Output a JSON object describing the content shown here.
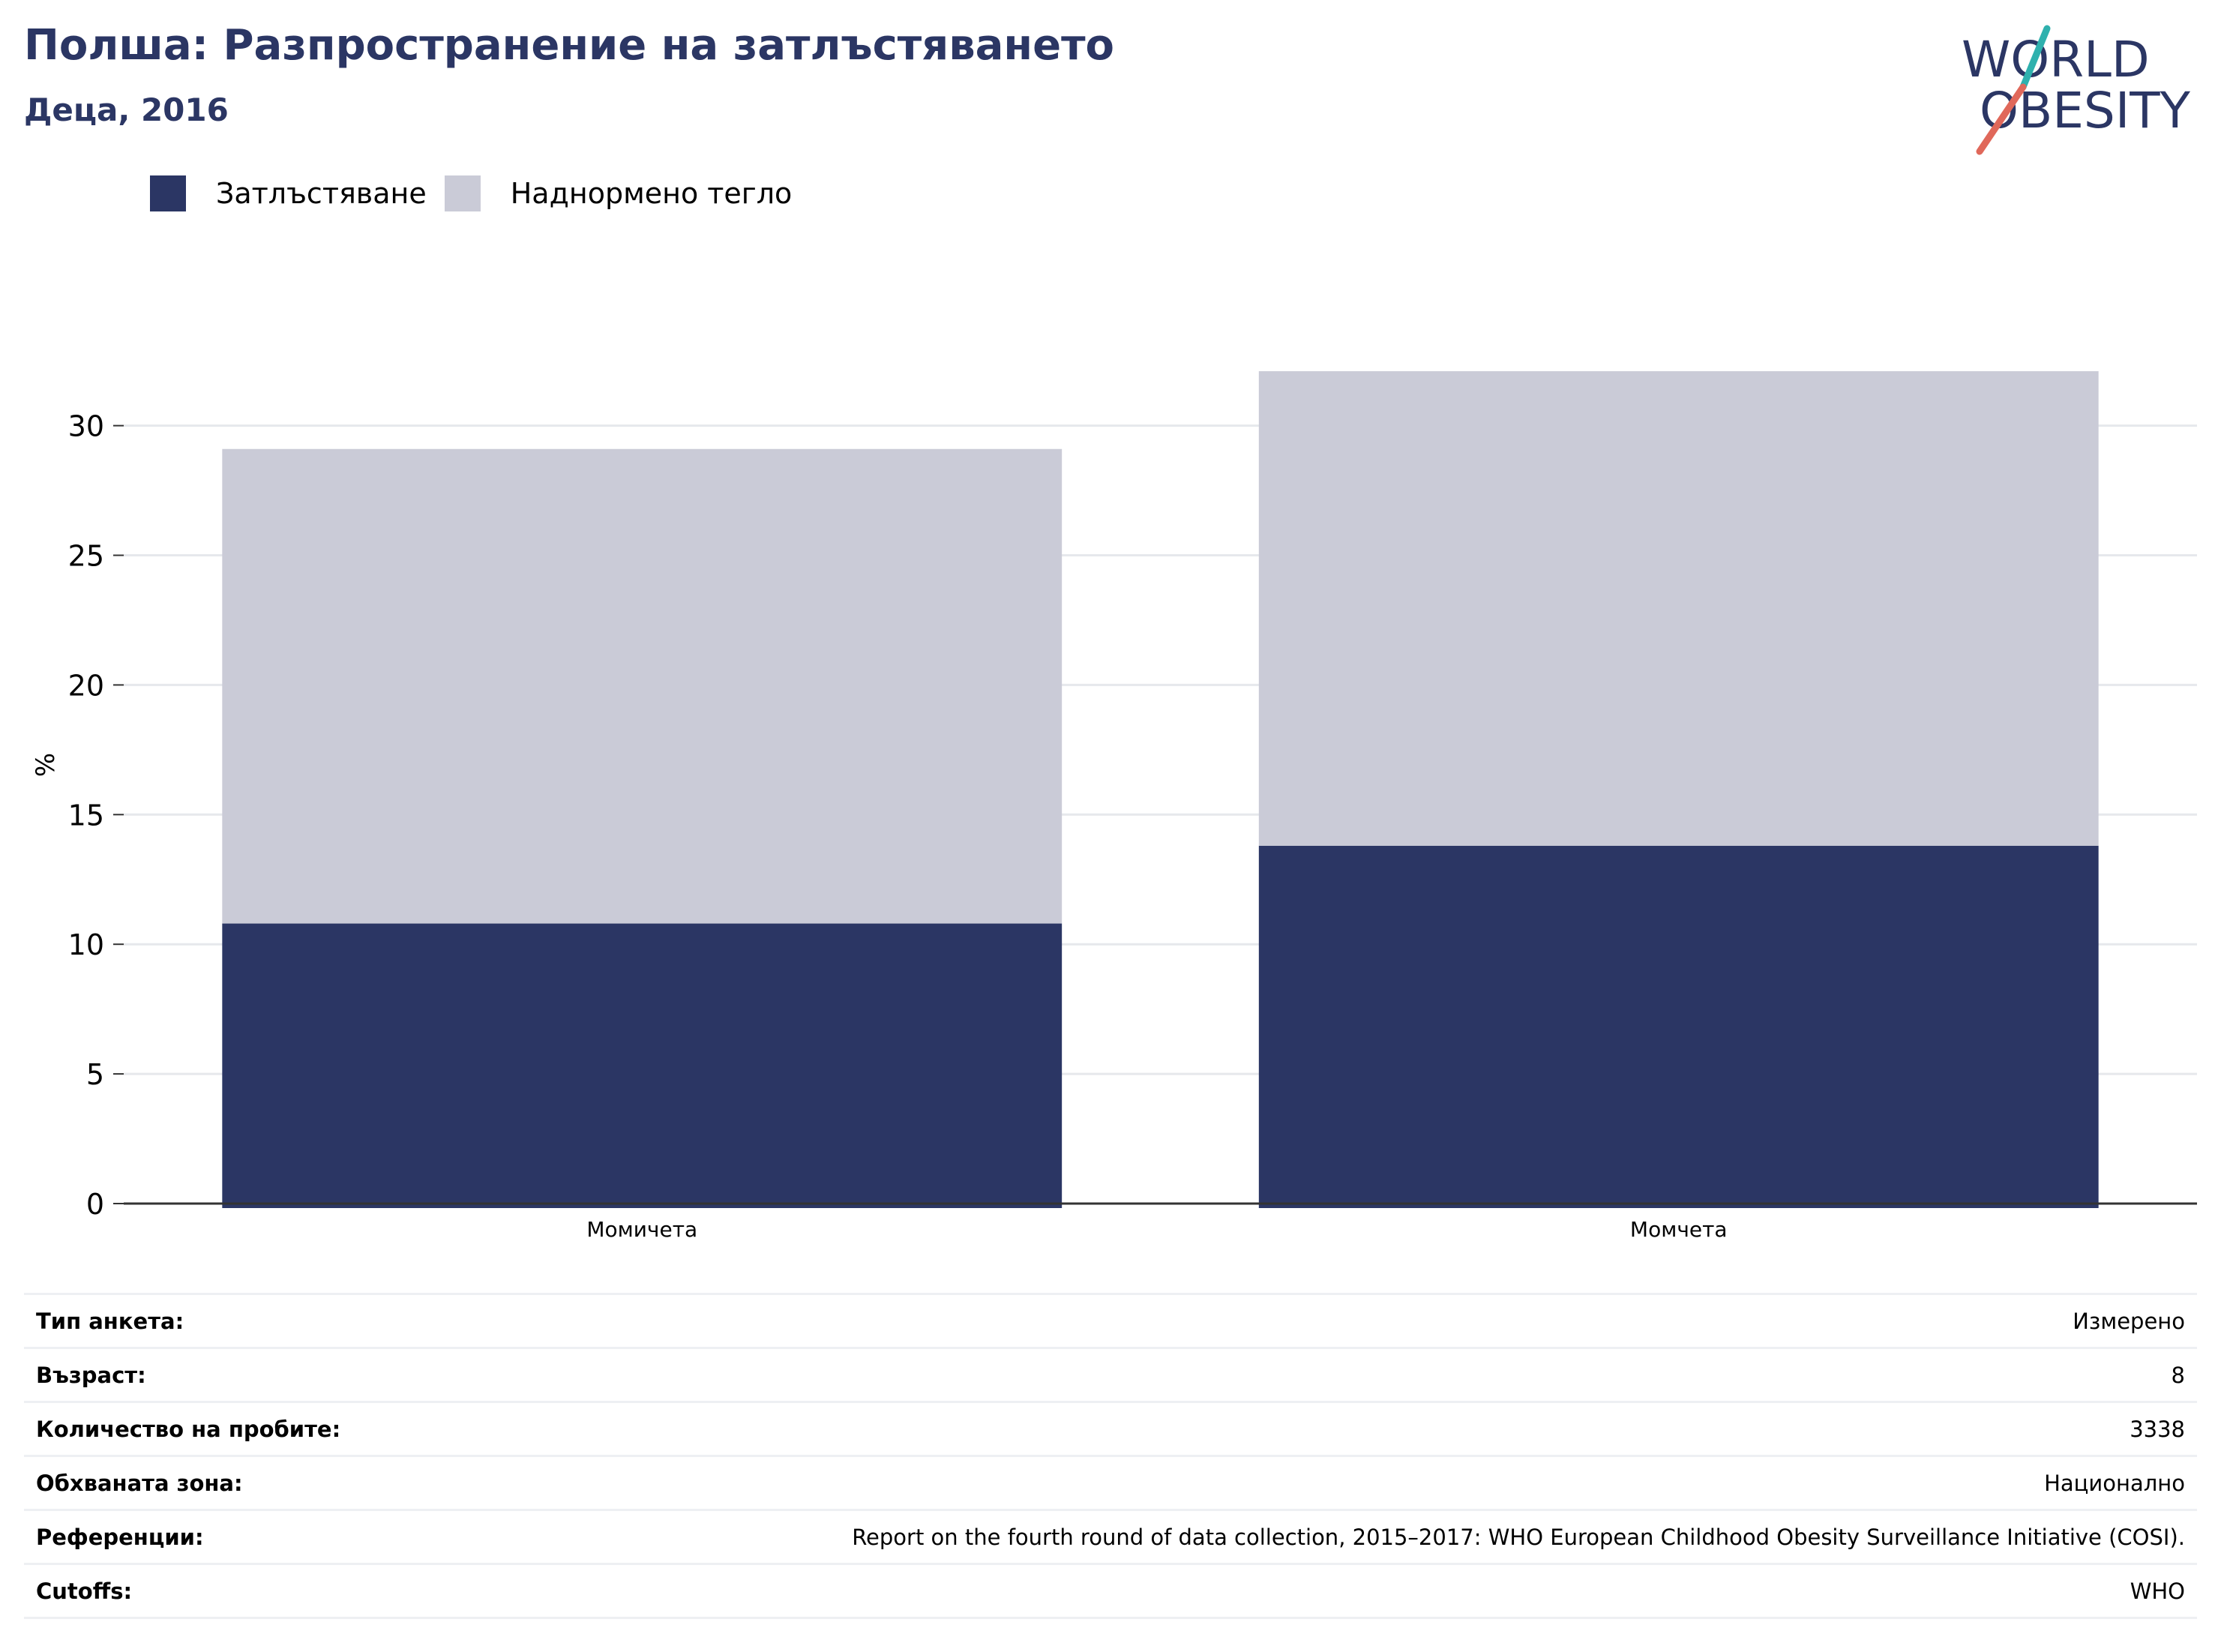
{
  "header": {
    "title": "Полша: Разпространение на затлъстяването",
    "subtitle": "Деца, 2016"
  },
  "logo": {
    "line1": "WORLD",
    "line2": "OBESITY"
  },
  "colors": {
    "obesity": "#2b3664",
    "overweight": "#cacbd7",
    "title": "#2b3664",
    "grid": "#e6e8ec",
    "axis": "#333333"
  },
  "chart_data": {
    "type": "bar",
    "stacked": true,
    "categories": [
      "Момичета",
      "Момчета"
    ],
    "series": [
      {
        "name": "Затлъстяване",
        "values": [
          10.8,
          13.8
        ]
      },
      {
        "name": "Наднормено тегло",
        "values": [
          18.3,
          18.3
        ]
      }
    ],
    "ylabel": "%",
    "ylim": [
      0,
      32.1
    ],
    "yticks": [
      0,
      5,
      10,
      15,
      20,
      25,
      30
    ],
    "grid": true,
    "legend_position": "top-left"
  },
  "info_table": [
    {
      "label": "Тип анкета:",
      "value": "Измерено"
    },
    {
      "label": "Възраст:",
      "value": "8"
    },
    {
      "label": "Количество на пробите:",
      "value": "3338"
    },
    {
      "label": "Обхваната зона:",
      "value": "Национално"
    },
    {
      "label": "Референции:",
      "value": "Report on the fourth round of data collection, 2015–2017: WHO European Childhood Obesity Surveillance Initiative (COSI)."
    },
    {
      "label": "Cutoffs:",
      "value": "WHO"
    }
  ]
}
